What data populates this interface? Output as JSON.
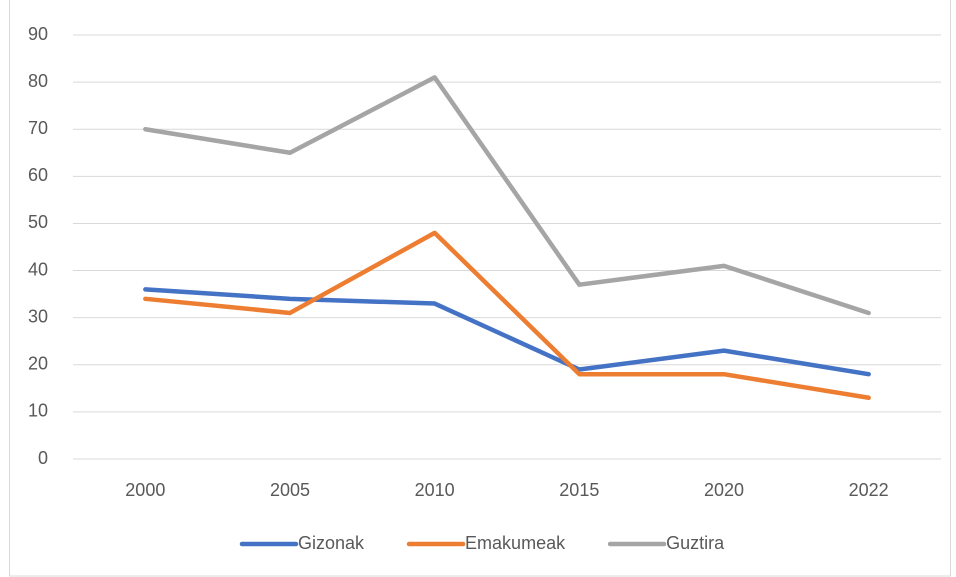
{
  "chart_data": {
    "type": "line",
    "categories": [
      "2000",
      "2005",
      "2010",
      "2015",
      "2020",
      "2022"
    ],
    "series": [
      {
        "name": "Gizonak",
        "color": "#4472c4",
        "values": [
          36,
          34,
          33,
          19,
          23,
          18
        ]
      },
      {
        "name": "Emakumeak",
        "color": "#ed7d31",
        "values": [
          34,
          31,
          48,
          18,
          18,
          13
        ]
      },
      {
        "name": "Guztira",
        "color": "#a5a5a5",
        "values": [
          70,
          65,
          81,
          37,
          41,
          31
        ]
      }
    ],
    "ylim": [
      0,
      90
    ],
    "yticks": [
      0,
      10,
      20,
      30,
      40,
      50,
      60,
      70,
      80,
      90
    ],
    "grid": true,
    "legend": "bottom"
  }
}
